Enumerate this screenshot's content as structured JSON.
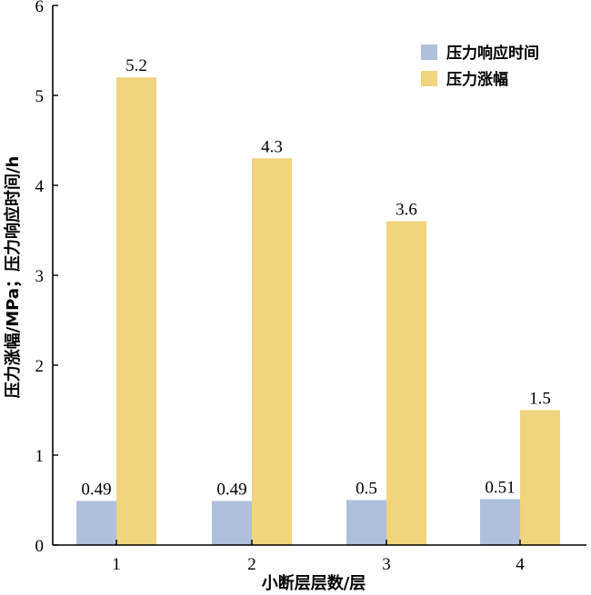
{
  "chart_data": {
    "type": "bar",
    "categories": [
      "1",
      "2",
      "3",
      "4"
    ],
    "series": [
      {
        "name": "压力响应时间",
        "values": [
          0.49,
          0.49,
          0.5,
          0.51
        ],
        "labels": [
          "0.49",
          "0.49",
          "0.5",
          "0.51"
        ],
        "color": "#aec0db"
      },
      {
        "name": "压力涨幅",
        "values": [
          5.2,
          4.3,
          3.6,
          1.5
        ],
        "labels": [
          "5.2",
          "4.3",
          "3.6",
          "1.5"
        ],
        "color": "#f0d47e"
      }
    ],
    "xlabel": "小断层层数/层",
    "ylabel": "压力涨幅/MPa；压力响应时间/h",
    "ylim": [
      0,
      6
    ],
    "yticks": [
      "0",
      "1",
      "2",
      "3",
      "4",
      "5",
      "6"
    ],
    "grid": false,
    "legend_position": "top-right"
  }
}
